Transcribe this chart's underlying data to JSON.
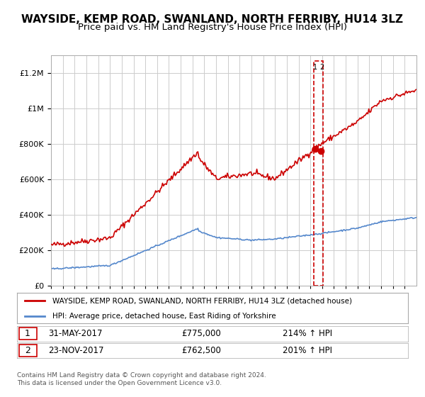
{
  "title": "WAYSIDE, KEMP ROAD, SWANLAND, NORTH FERRIBY, HU14 3LZ",
  "subtitle": "Price paid vs. HM Land Registry's House Price Index (HPI)",
  "title_fontsize": 11,
  "subtitle_fontsize": 9.5,
  "legend1": "WAYSIDE, KEMP ROAD, SWANLAND, NORTH FERRIBY, HU14 3LZ (detached house)",
  "legend2": "HPI: Average price, detached house, East Riding of Yorkshire",
  "footer": "Contains HM Land Registry data © Crown copyright and database right 2024.\nThis data is licensed under the Open Government Licence v3.0.",
  "sale1_label": "1",
  "sale1_date": "31-MAY-2017",
  "sale1_price": "£775,000",
  "sale1_hpi": "214% ↑ HPI",
  "sale2_label": "2",
  "sale2_date": "23-NOV-2017",
  "sale2_price": "£762,500",
  "sale2_hpi": "201% ↑ HPI",
  "red_color": "#cc0000",
  "blue_color": "#5588cc",
  "grid_color": "#cccccc",
  "dashed_box_color": "#cc0000",
  "ylim": [
    0,
    1300000
  ],
  "xlim_start": 1995,
  "xlim_end": 2026,
  "sale1_x": 2017.41,
  "sale1_y": 775000,
  "sale2_x": 2017.9,
  "sale2_y": 762500
}
